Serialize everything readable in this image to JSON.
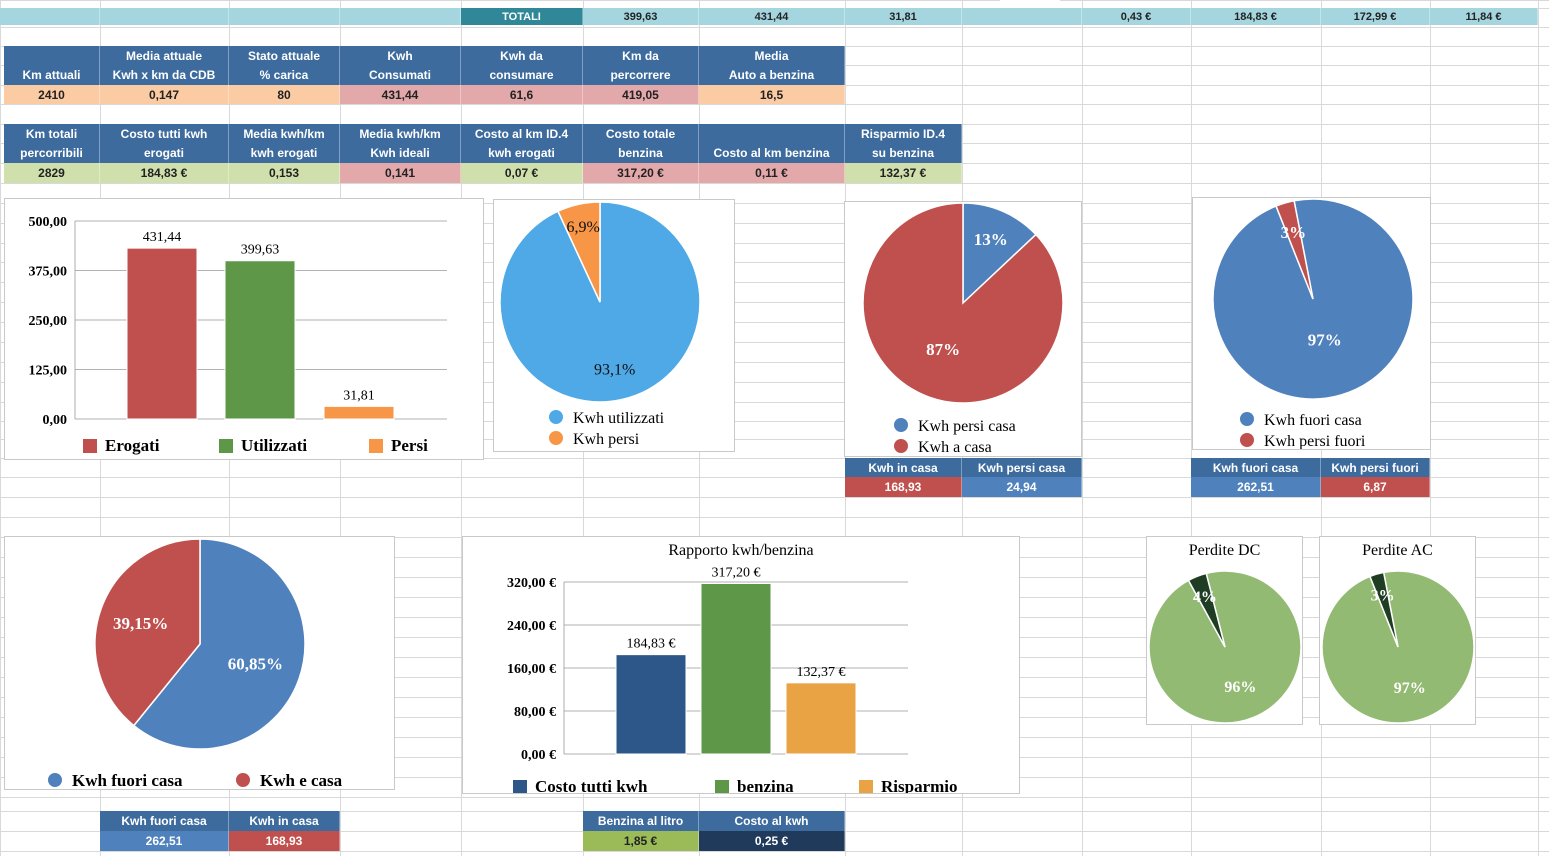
{
  "colors": {
    "header_blue": "#3d6b9e",
    "totals_cyan": "#a5d6e0",
    "totals_label_teal": "#2f8797",
    "peach": "#fbcba4",
    "rose": "#e3a8aa",
    "light_green": "#cfe0ad",
    "red": "#c0504d",
    "green": "#5f9748",
    "orange": "#f79646",
    "sky": "#4ea9e6",
    "steel_blue": "#4f81bd",
    "navy": "#2d5788",
    "amber": "#e9a244",
    "sage": "#93ba72",
    "dark_green": "#1e3d22",
    "olive_green": "#9bbb59",
    "dark_navy": "#1f3a5a"
  },
  "totals": {
    "label": "TOTALI",
    "values": [
      "399,63",
      "431,44",
      "31,81",
      "0,43 €",
      "184,83 €",
      "172,99 €",
      "11,84 €"
    ]
  },
  "table1": {
    "headers_top": [
      "",
      "Media attuale",
      "Stato attuale",
      "Kwh",
      "Kwh da",
      "Km da",
      "Media"
    ],
    "headers_bottom": [
      "Km attuali",
      "Kwh x km da CDB",
      "% carica",
      "Consumati",
      "consumare",
      "percorrere",
      "Auto a benzina"
    ],
    "values": [
      "2410",
      "0,147",
      "80",
      "431,44",
      "61,6",
      "419,05",
      "16,5"
    ]
  },
  "table2": {
    "headers_top": [
      "Km totali",
      "Costo tutti kwh",
      "Media kwh/km",
      "Media kwh/km",
      "Costo al km ID.4",
      "Costo totale",
      "",
      "Risparmio ID.4"
    ],
    "headers_bottom": [
      "percorribili",
      "erogati",
      "kwh erogati",
      "Kwh ideali",
      "kwh erogati",
      "benzina",
      "Costo al km benzina",
      "su benzina"
    ],
    "values": [
      "2829",
      "184,83 €",
      "0,153",
      "0,141",
      "0,07 €",
      "317,20 €",
      "0,11 €",
      "132,37 €"
    ]
  },
  "table_casa": {
    "headers": [
      "Kwh in casa",
      "Kwh persi casa"
    ],
    "values": [
      "168,93",
      "24,94"
    ]
  },
  "table_fuori": {
    "headers": [
      "Kwh fuori casa",
      "Kwh persi fuori"
    ],
    "values": [
      "262,51",
      "6,87"
    ]
  },
  "table_bottom1": {
    "headers": [
      "Kwh fuori casa",
      "Kwh in casa"
    ],
    "values": [
      "262,51",
      "168,93"
    ]
  },
  "table_bottom2": {
    "headers": [
      "Benzina al litro",
      "Costo al kwh"
    ],
    "values": [
      "1,85 €",
      "0,25 €"
    ]
  },
  "chart_data": [
    {
      "type": "bar",
      "categories": [
        "Erogati",
        "Utilizzati",
        "Persi"
      ],
      "values": [
        431.44,
        399.63,
        31.81
      ],
      "data_labels": [
        "431,44",
        "399,63",
        "31,81"
      ],
      "yticks": [
        "0,00",
        "125,00",
        "250,00",
        "375,00",
        "500,00"
      ],
      "ylim": [
        0,
        500
      ],
      "legend": [
        "Erogati",
        "Utilizzati",
        "Persi"
      ],
      "legend_position": "bottom",
      "grid": true
    },
    {
      "type": "pie",
      "labels": [
        "Kwh utilizzati",
        "Kwh persi"
      ],
      "values": [
        93.1,
        6.9
      ],
      "data_labels": [
        "93,1%",
        "6,9%"
      ],
      "legend_position": "bottom"
    },
    {
      "type": "pie",
      "labels": [
        "Kwh persi casa",
        "Kwh a casa"
      ],
      "values": [
        13,
        87
      ],
      "data_labels": [
        "13%",
        "87%"
      ],
      "legend_position": "bottom"
    },
    {
      "type": "pie",
      "labels": [
        "Kwh fuori casa",
        "Kwh persi fuori"
      ],
      "values": [
        97,
        3
      ],
      "data_labels": [
        "97%",
        "3%"
      ],
      "legend_position": "bottom"
    },
    {
      "type": "pie",
      "labels": [
        "Kwh fuori casa",
        "Kwh e casa"
      ],
      "values": [
        60.85,
        39.15
      ],
      "data_labels": [
        "60,85%",
        "39,15%"
      ],
      "legend_position": "bottom"
    },
    {
      "type": "bar",
      "title": "Rapporto kwh/benzina",
      "categories": [
        "Costo tutti kwh",
        "benzina",
        "Risparmio"
      ],
      "values": [
        184.83,
        317.2,
        132.37
      ],
      "data_labels": [
        "184,83 €",
        "317,20 €",
        "132,37 €"
      ],
      "yticks": [
        "0,00 €",
        "80,00 €",
        "160,00 €",
        "240,00 €",
        "320,00 €"
      ],
      "ylim": [
        0,
        320
      ],
      "legend": [
        "Costo tutti kwh",
        "benzina",
        "Risparmio"
      ],
      "legend_position": "bottom",
      "grid": true
    },
    {
      "type": "pie",
      "title": "Perdite DC",
      "values": [
        96,
        4
      ],
      "data_labels": [
        "96%",
        "4%"
      ]
    },
    {
      "type": "pie",
      "title": "Perdite AC",
      "values": [
        97,
        3
      ],
      "data_labels": [
        "97%",
        "3%"
      ]
    }
  ]
}
